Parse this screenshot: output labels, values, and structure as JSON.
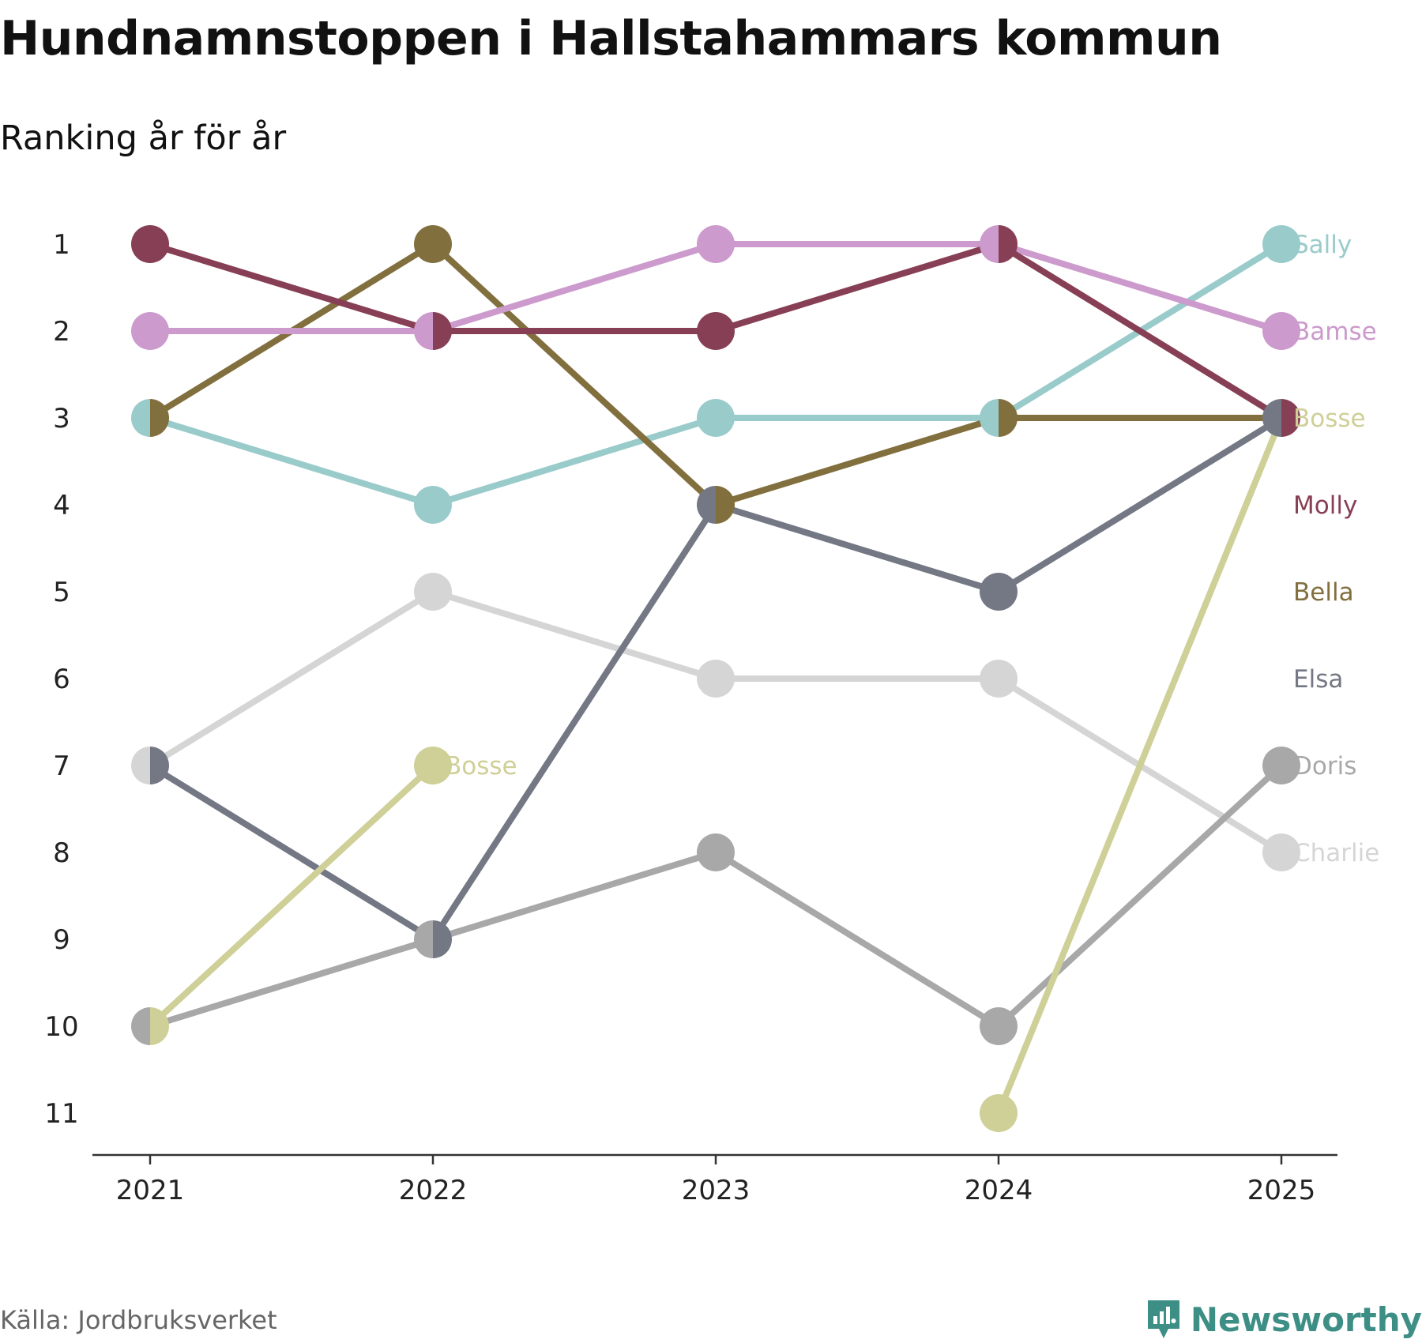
{
  "header": {
    "title": "Hundnamnstoppen i Hallstahammars kommun",
    "subtitle": "Ranking år för år"
  },
  "footer": {
    "source": "Källa: Jordbruksverket",
    "brand": "Newsworthy",
    "brand_color": "#3d8f86"
  },
  "chart_data": {
    "type": "line",
    "title": "Hundnamnstoppen i Hallstahammars kommun",
    "subtitle": "Ranking år för år",
    "x": [
      "2021",
      "2022",
      "2023",
      "2024",
      "2025"
    ],
    "y_ticks": [
      1,
      2,
      3,
      4,
      5,
      6,
      7,
      8,
      9,
      10,
      11
    ],
    "ylim": [
      1,
      11
    ],
    "y_inverted": true,
    "grid": false,
    "series": [
      {
        "name": "Charlie",
        "color": "#d5d5d5",
        "ranks": [
          7,
          5,
          6,
          6,
          8
        ],
        "end_rank": 8
      },
      {
        "name": "Doris",
        "color": "#a8a8a8",
        "ranks": [
          10,
          9,
          8,
          10,
          7
        ],
        "end_rank": 7
      },
      {
        "name": "Elsa",
        "color": "#747884",
        "ranks": [
          7,
          9,
          4,
          5,
          3
        ],
        "end_rank": 6
      },
      {
        "name": "Bosse",
        "color": "#cfcf98",
        "ranks": [
          10,
          7,
          null,
          11,
          3
        ],
        "end_rank": 3
      },
      {
        "name": "Sally",
        "color": "#9acbcb",
        "ranks": [
          3,
          4,
          3,
          3,
          1
        ],
        "end_rank": 1
      },
      {
        "name": "Bella",
        "color": "#826f3e",
        "ranks": [
          3,
          1,
          4,
          3,
          3
        ],
        "end_rank": 5
      },
      {
        "name": "Bamse",
        "color": "#cc9acc",
        "ranks": [
          2,
          2,
          1,
          1,
          2
        ],
        "end_rank": 2
      },
      {
        "name": "Molly",
        "color": "#873f55",
        "ranks": [
          1,
          2,
          2,
          1,
          3
        ],
        "end_rank": 4
      }
    ],
    "inline_labels": [
      {
        "name": "Bosse",
        "year": "2022",
        "rank": 7
      }
    ]
  }
}
